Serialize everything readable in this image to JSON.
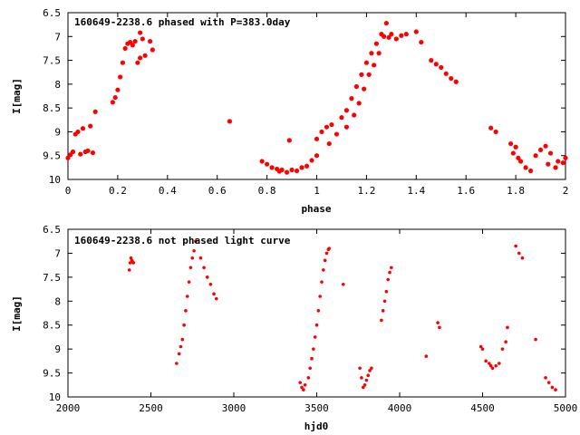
{
  "chart_data": [
    {
      "type": "scatter",
      "title": "160649-2238.6 phased with P=383.0day",
      "xlabel": "phase",
      "ylabel": "I[mag]",
      "xlim": [
        0,
        2
      ],
      "ylim": [
        6.5,
        10
      ],
      "y_inverted": true,
      "xticks": [
        0,
        0.2,
        0.4,
        0.6,
        0.8,
        1,
        1.2,
        1.4,
        1.6,
        1.8,
        2
      ],
      "xtick_labels": [
        "0",
        "0.2",
        "0.4",
        "0.6",
        "0.8",
        "1",
        "1.2",
        "1.4",
        "1.6",
        "1.8",
        "2"
      ],
      "yticks": [
        6.5,
        7,
        7.5,
        8,
        8.5,
        9,
        9.5,
        10
      ],
      "ytick_labels": [
        "6.5",
        "7",
        "7.5",
        "8",
        "8.5",
        "9",
        "9.5",
        "10"
      ],
      "marker_color": "#ff0000",
      "points": [
        [
          0.0,
          9.55
        ],
        [
          0.01,
          9.48
        ],
        [
          0.02,
          9.42
        ],
        [
          0.03,
          9.05
        ],
        [
          0.04,
          9.0
        ],
        [
          0.05,
          9.47
        ],
        [
          0.06,
          8.93
        ],
        [
          0.07,
          9.42
        ],
        [
          0.08,
          9.4
        ],
        [
          0.09,
          8.88
        ],
        [
          0.1,
          9.44
        ],
        [
          0.11,
          8.58
        ],
        [
          0.18,
          8.38
        ],
        [
          0.19,
          8.28
        ],
        [
          0.2,
          8.12
        ],
        [
          0.21,
          7.85
        ],
        [
          0.22,
          7.55
        ],
        [
          0.23,
          7.25
        ],
        [
          0.24,
          7.15
        ],
        [
          0.25,
          7.12
        ],
        [
          0.26,
          7.18
        ],
        [
          0.27,
          7.1
        ],
        [
          0.28,
          7.55
        ],
        [
          0.29,
          7.45
        ],
        [
          0.29,
          6.92
        ],
        [
          0.3,
          7.05
        ],
        [
          0.31,
          7.4
        ],
        [
          0.33,
          7.1
        ],
        [
          0.34,
          7.28
        ],
        [
          0.65,
          8.78
        ],
        [
          0.78,
          9.62
        ],
        [
          0.8,
          9.68
        ],
        [
          0.82,
          9.75
        ],
        [
          0.84,
          9.78
        ],
        [
          0.85,
          9.83
        ],
        [
          0.86,
          9.8
        ],
        [
          0.88,
          9.85
        ],
        [
          0.89,
          9.18
        ],
        [
          0.9,
          9.8
        ],
        [
          0.92,
          9.82
        ],
        [
          0.94,
          9.75
        ],
        [
          0.96,
          9.72
        ],
        [
          0.98,
          9.6
        ],
        [
          1.0,
          9.5
        ],
        [
          1.0,
          9.15
        ],
        [
          1.02,
          9.0
        ],
        [
          1.04,
          8.9
        ],
        [
          1.05,
          9.25
        ],
        [
          1.06,
          8.85
        ],
        [
          1.08,
          9.05
        ],
        [
          1.1,
          8.7
        ],
        [
          1.12,
          8.55
        ],
        [
          1.12,
          8.9
        ],
        [
          1.14,
          8.3
        ],
        [
          1.15,
          8.65
        ],
        [
          1.16,
          8.05
        ],
        [
          1.17,
          8.4
        ],
        [
          1.18,
          7.8
        ],
        [
          1.19,
          8.1
        ],
        [
          1.2,
          7.55
        ],
        [
          1.21,
          7.8
        ],
        [
          1.22,
          7.35
        ],
        [
          1.23,
          7.6
        ],
        [
          1.24,
          7.15
        ],
        [
          1.25,
          7.35
        ],
        [
          1.26,
          6.95
        ],
        [
          1.27,
          7.0
        ],
        [
          1.28,
          6.72
        ],
        [
          1.29,
          7.02
        ],
        [
          1.3,
          6.95
        ],
        [
          1.32,
          7.05
        ],
        [
          1.34,
          6.98
        ],
        [
          1.36,
          6.95
        ],
        [
          1.4,
          6.9
        ],
        [
          1.42,
          7.12
        ],
        [
          1.46,
          7.5
        ],
        [
          1.48,
          7.58
        ],
        [
          1.5,
          7.65
        ],
        [
          1.52,
          7.78
        ],
        [
          1.54,
          7.88
        ],
        [
          1.56,
          7.95
        ],
        [
          1.7,
          8.92
        ],
        [
          1.72,
          9.0
        ],
        [
          1.78,
          9.25
        ],
        [
          1.79,
          9.45
        ],
        [
          1.8,
          9.32
        ],
        [
          1.81,
          9.55
        ],
        [
          1.82,
          9.62
        ],
        [
          1.84,
          9.75
        ],
        [
          1.86,
          9.82
        ],
        [
          1.88,
          9.5
        ],
        [
          1.9,
          9.38
        ],
        [
          1.92,
          9.3
        ],
        [
          1.93,
          9.68
        ],
        [
          1.94,
          9.45
        ],
        [
          1.96,
          9.75
        ],
        [
          1.97,
          9.62
        ],
        [
          1.99,
          9.65
        ],
        [
          2.0,
          9.55
        ]
      ]
    },
    {
      "type": "scatter",
      "title": "160649-2238.6 not phased light curve",
      "xlabel": "hjd0",
      "ylabel": "I[mag]",
      "xlim": [
        2000,
        5000
      ],
      "ylim": [
        6.5,
        10
      ],
      "y_inverted": true,
      "xticks": [
        2000,
        2500,
        3000,
        3500,
        4000,
        4500,
        5000
      ],
      "xtick_labels": [
        "2000",
        "2500",
        "3000",
        "3500",
        "4000",
        "4500",
        "5000"
      ],
      "yticks": [
        6.5,
        7,
        7.5,
        8,
        8.5,
        9,
        9.5,
        10
      ],
      "ytick_labels": [
        "6.5",
        "7",
        "7.5",
        "8",
        "8.5",
        "9",
        "9.5",
        "10"
      ],
      "marker_color": "#ff0000",
      "points": [
        [
          2370,
          7.35
        ],
        [
          2375,
          7.2
        ],
        [
          2380,
          7.1
        ],
        [
          2385,
          7.15
        ],
        [
          2390,
          7.18
        ],
        [
          2395,
          7.2
        ],
        [
          2655,
          9.3
        ],
        [
          2670,
          9.1
        ],
        [
          2680,
          8.95
        ],
        [
          2690,
          8.8
        ],
        [
          2700,
          8.5
        ],
        [
          2710,
          8.2
        ],
        [
          2720,
          7.9
        ],
        [
          2730,
          7.6
        ],
        [
          2740,
          7.3
        ],
        [
          2750,
          7.1
        ],
        [
          2760,
          6.95
        ],
        [
          2770,
          6.75
        ],
        [
          2800,
          7.1
        ],
        [
          2820,
          7.3
        ],
        [
          2840,
          7.5
        ],
        [
          2860,
          7.65
        ],
        [
          2880,
          7.85
        ],
        [
          2895,
          7.95
        ],
        [
          3400,
          9.7
        ],
        [
          3410,
          9.8
        ],
        [
          3420,
          9.85
        ],
        [
          3430,
          9.75
        ],
        [
          3450,
          9.6
        ],
        [
          3460,
          9.4
        ],
        [
          3470,
          9.2
        ],
        [
          3480,
          9.0
        ],
        [
          3490,
          8.75
        ],
        [
          3500,
          8.5
        ],
        [
          3510,
          8.2
        ],
        [
          3520,
          7.9
        ],
        [
          3530,
          7.6
        ],
        [
          3540,
          7.35
        ],
        [
          3550,
          7.15
        ],
        [
          3560,
          7.0
        ],
        [
          3570,
          6.92
        ],
        [
          3575,
          6.9
        ],
        [
          3660,
          7.65
        ],
        [
          3760,
          9.4
        ],
        [
          3770,
          9.6
        ],
        [
          3780,
          9.8
        ],
        [
          3790,
          9.75
        ],
        [
          3800,
          9.65
        ],
        [
          3810,
          9.55
        ],
        [
          3820,
          9.45
        ],
        [
          3830,
          9.4
        ],
        [
          3890,
          8.4
        ],
        [
          3900,
          8.2
        ],
        [
          3910,
          8.0
        ],
        [
          3920,
          7.8
        ],
        [
          3930,
          7.55
        ],
        [
          3940,
          7.4
        ],
        [
          3950,
          7.3
        ],
        [
          4160,
          9.15
        ],
        [
          4230,
          8.45
        ],
        [
          4240,
          8.55
        ],
        [
          4490,
          8.95
        ],
        [
          4500,
          9.0
        ],
        [
          4520,
          9.25
        ],
        [
          4540,
          9.3
        ],
        [
          4550,
          9.35
        ],
        [
          4560,
          9.4
        ],
        [
          4580,
          9.35
        ],
        [
          4600,
          9.3
        ],
        [
          4620,
          9.0
        ],
        [
          4640,
          8.85
        ],
        [
          4650,
          8.55
        ],
        [
          4700,
          6.85
        ],
        [
          4720,
          7.0
        ],
        [
          4740,
          7.1
        ],
        [
          4820,
          8.8
        ],
        [
          4880,
          9.6
        ],
        [
          4900,
          9.7
        ],
        [
          4920,
          9.8
        ],
        [
          4940,
          9.85
        ]
      ]
    }
  ]
}
